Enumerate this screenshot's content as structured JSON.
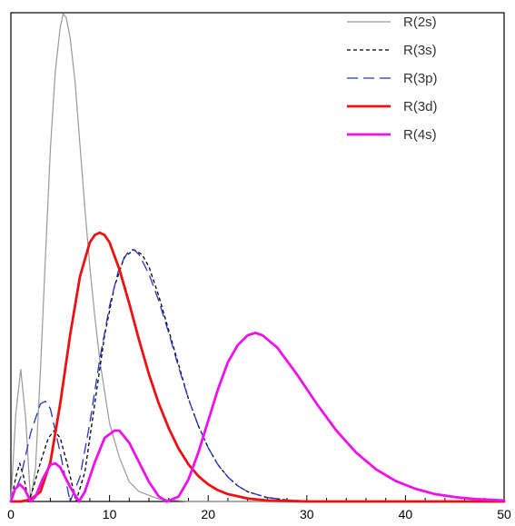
{
  "chart_data": {
    "type": "line",
    "title": "",
    "xlabel": "",
    "ylabel": "",
    "xlim": [
      0,
      50
    ],
    "ylim": [
      0,
      1
    ],
    "x_ticks": [
      0,
      10,
      20,
      30,
      40,
      50
    ],
    "grid": false,
    "legend_position": "top-right",
    "series": [
      {
        "name": "R(2s)",
        "color": "#999999",
        "style": "solid",
        "points": [
          [
            0,
            0
          ],
          [
            0.5,
            0.18
          ],
          [
            1,
            0.27
          ],
          [
            1.5,
            0.17
          ],
          [
            2,
            0
          ],
          [
            2.5,
            0.07
          ],
          [
            3,
            0.27
          ],
          [
            3.5,
            0.5
          ],
          [
            4,
            0.72
          ],
          [
            4.5,
            0.88
          ],
          [
            5,
            0.97
          ],
          [
            5.3,
            0.998
          ],
          [
            5.6,
            0.99
          ],
          [
            6,
            0.95
          ],
          [
            6.5,
            0.86
          ],
          [
            7,
            0.73
          ],
          [
            7.5,
            0.6
          ],
          [
            8,
            0.48
          ],
          [
            8.5,
            0.38
          ],
          [
            9,
            0.29
          ],
          [
            10,
            0.16
          ],
          [
            11,
            0.09
          ],
          [
            12,
            0.04
          ],
          [
            13,
            0.02
          ],
          [
            15,
            0.005
          ],
          [
            18,
            0
          ],
          [
            50,
            0
          ]
        ]
      },
      {
        "name": "R(3s)",
        "color": "#000000",
        "style": "dotted",
        "points": [
          [
            0,
            0
          ],
          [
            0.5,
            0.05
          ],
          [
            0.9,
            0.078
          ],
          [
            1.3,
            0.05
          ],
          [
            1.8,
            0
          ],
          [
            2.3,
            0.03
          ],
          [
            3,
            0.08
          ],
          [
            3.8,
            0.13
          ],
          [
            4.4,
            0.145
          ],
          [
            5,
            0.13
          ],
          [
            5.8,
            0.07
          ],
          [
            6.6,
            0
          ],
          [
            7.5,
            0.06
          ],
          [
            8.5,
            0.2
          ],
          [
            9.5,
            0.34
          ],
          [
            10.5,
            0.44
          ],
          [
            11.5,
            0.5
          ],
          [
            12.5,
            0.515
          ],
          [
            13.3,
            0.505
          ],
          [
            14,
            0.48
          ],
          [
            15,
            0.42
          ],
          [
            16,
            0.35
          ],
          [
            17,
            0.28
          ],
          [
            18,
            0.21
          ],
          [
            19,
            0.155
          ],
          [
            20,
            0.11
          ],
          [
            21,
            0.075
          ],
          [
            22,
            0.05
          ],
          [
            23,
            0.032
          ],
          [
            24,
            0.02
          ],
          [
            26,
            0.008
          ],
          [
            28,
            0.003
          ],
          [
            30,
            0.001
          ],
          [
            33,
            0
          ],
          [
            50,
            0
          ]
        ]
      },
      {
        "name": "R(3p)",
        "color": "#2233cc",
        "style": "dashed",
        "points": [
          [
            0,
            0
          ],
          [
            1,
            0.05
          ],
          [
            2,
            0.14
          ],
          [
            3,
            0.2
          ],
          [
            3.5,
            0.205
          ],
          [
            4,
            0.19
          ],
          [
            5,
            0.1
          ],
          [
            6,
            0
          ],
          [
            7,
            0.05
          ],
          [
            8,
            0.16
          ],
          [
            9,
            0.29
          ],
          [
            10,
            0.4
          ],
          [
            11,
            0.48
          ],
          [
            12,
            0.515
          ],
          [
            12.5,
            0.515
          ],
          [
            13,
            0.505
          ],
          [
            14,
            0.465
          ],
          [
            15,
            0.41
          ],
          [
            16,
            0.345
          ],
          [
            17,
            0.275
          ],
          [
            18,
            0.21
          ],
          [
            19,
            0.155
          ],
          [
            20,
            0.11
          ],
          [
            21,
            0.075
          ],
          [
            22,
            0.05
          ],
          [
            23,
            0.032
          ],
          [
            24,
            0.02
          ],
          [
            26,
            0.008
          ],
          [
            28,
            0.003
          ],
          [
            30,
            0.001
          ],
          [
            33,
            0
          ],
          [
            50,
            0
          ]
        ]
      },
      {
        "name": "R(3d)",
        "color": "#ee1111",
        "style": "solid",
        "points": [
          [
            0,
            0
          ],
          [
            1,
            0
          ],
          [
            2,
            0.004
          ],
          [
            3,
            0.02
          ],
          [
            4,
            0.08
          ],
          [
            5,
            0.2
          ],
          [
            6,
            0.34
          ],
          [
            7,
            0.46
          ],
          [
            8,
            0.53
          ],
          [
            8.5,
            0.545
          ],
          [
            9,
            0.55
          ],
          [
            9.5,
            0.545
          ],
          [
            10,
            0.53
          ],
          [
            11,
            0.475
          ],
          [
            12,
            0.405
          ],
          [
            13,
            0.33
          ],
          [
            14,
            0.26
          ],
          [
            15,
            0.2
          ],
          [
            16,
            0.15
          ],
          [
            17,
            0.108
          ],
          [
            18,
            0.076
          ],
          [
            19,
            0.052
          ],
          [
            20,
            0.035
          ],
          [
            21,
            0.023
          ],
          [
            22,
            0.015
          ],
          [
            24,
            0.006
          ],
          [
            26,
            0.002
          ],
          [
            28,
            0.001
          ],
          [
            30,
            0
          ],
          [
            50,
            0
          ]
        ]
      },
      {
        "name": "R(4s)",
        "color": "#ee11ee",
        "style": "solid",
        "points": [
          [
            0,
            0
          ],
          [
            0.4,
            0.025
          ],
          [
            0.9,
            0.035
          ],
          [
            1.4,
            0.025
          ],
          [
            2,
            0
          ],
          [
            2.5,
            0.01
          ],
          [
            3.2,
            0.045
          ],
          [
            4,
            0.075
          ],
          [
            4.5,
            0.078
          ],
          [
            5,
            0.07
          ],
          [
            6,
            0.03
          ],
          [
            6.9,
            0
          ],
          [
            7.5,
            0.02
          ],
          [
            8.5,
            0.08
          ],
          [
            9.5,
            0.13
          ],
          [
            10.5,
            0.145
          ],
          [
            11,
            0.145
          ],
          [
            12,
            0.12
          ],
          [
            13,
            0.08
          ],
          [
            14,
            0.04
          ],
          [
            15,
            0.01
          ],
          [
            15.8,
            0
          ],
          [
            17,
            0.01
          ],
          [
            18,
            0.045
          ],
          [
            19,
            0.1
          ],
          [
            20,
            0.165
          ],
          [
            21,
            0.23
          ],
          [
            22,
            0.285
          ],
          [
            23,
            0.32
          ],
          [
            24,
            0.34
          ],
          [
            24.8,
            0.345
          ],
          [
            25.5,
            0.34
          ],
          [
            27,
            0.315
          ],
          [
            29,
            0.26
          ],
          [
            31,
            0.2
          ],
          [
            33,
            0.145
          ],
          [
            35,
            0.1
          ],
          [
            37,
            0.066
          ],
          [
            39,
            0.042
          ],
          [
            41,
            0.026
          ],
          [
            43,
            0.015
          ],
          [
            45,
            0.009
          ],
          [
            47,
            0.005
          ],
          [
            50,
            0.002
          ]
        ]
      }
    ]
  }
}
